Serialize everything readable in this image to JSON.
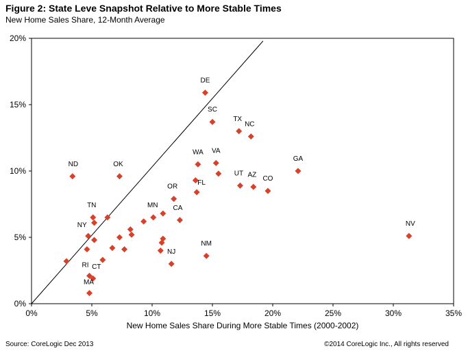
{
  "header": {
    "title": "Figure 2:  State Leve Snapshot Relative to More Stable Times",
    "subtitle": "New Home Sales Share, 12-Month Average"
  },
  "footer": {
    "source": "Source: CoreLogic Dec 2013",
    "copyright": "©2014 CoreLogic Inc., All rights reserved"
  },
  "chart_data": {
    "type": "scatter",
    "title": "Figure 2:  State Leve Snapshot Relative to More Stable Times",
    "subtitle": "New Home Sales Share, 12-Month Average",
    "xlabel": "New Home Sales Share During More Stable Times (2000-2002)",
    "ylabel": "",
    "xlim": [
      0,
      35
    ],
    "ylim": [
      0,
      20
    ],
    "x_ticks": [
      "0%",
      "5%",
      "10%",
      "15%",
      "20%",
      "25%",
      "30%",
      "35%"
    ],
    "y_ticks": [
      "0%",
      "5%",
      "10%",
      "15%",
      "20%"
    ],
    "marker_color": "#D9402A",
    "reference_line": {
      "from": [
        0,
        0
      ],
      "to": [
        19.2,
        19.8
      ]
    },
    "points": [
      {
        "label": "DE",
        "x": 14.4,
        "y": 15.9
      },
      {
        "label": "SC",
        "x": 15.0,
        "y": 13.7
      },
      {
        "label": "TX",
        "x": 17.2,
        "y": 13.0
      },
      {
        "label": "NC",
        "x": 18.2,
        "y": 12.6
      },
      {
        "label": "ND",
        "x": 3.4,
        "y": 9.6
      },
      {
        "label": "OK",
        "x": 7.3,
        "y": 9.6
      },
      {
        "label": "WA",
        "x": 13.8,
        "y": 10.5
      },
      {
        "label": "VA",
        "x": 15.3,
        "y": 10.6
      },
      {
        "label": "GA",
        "x": 22.1,
        "y": 10.0
      },
      {
        "label": "",
        "x": 15.5,
        "y": 9.8
      },
      {
        "label": "",
        "x": 13.6,
        "y": 9.3
      },
      {
        "label": "FL",
        "x": 13.7,
        "y": 8.4
      },
      {
        "label": "UT",
        "x": 17.3,
        "y": 8.9
      },
      {
        "label": "AZ",
        "x": 18.4,
        "y": 8.8
      },
      {
        "label": "CO",
        "x": 19.6,
        "y": 8.5
      },
      {
        "label": "OR",
        "x": 11.8,
        "y": 7.9
      },
      {
        "label": "TN",
        "x": 5.1,
        "y": 6.5
      },
      {
        "label": "",
        "x": 5.2,
        "y": 6.1
      },
      {
        "label": "",
        "x": 6.3,
        "y": 6.5
      },
      {
        "label": "MN",
        "x": 10.1,
        "y": 6.5
      },
      {
        "label": "",
        "x": 10.9,
        "y": 6.8
      },
      {
        "label": "CA",
        "x": 12.3,
        "y": 6.3
      },
      {
        "label": "",
        "x": 9.3,
        "y": 6.2
      },
      {
        "label": "",
        "x": 8.2,
        "y": 5.6
      },
      {
        "label": "",
        "x": 8.3,
        "y": 5.2
      },
      {
        "label": "NY",
        "x": 4.7,
        "y": 5.1
      },
      {
        "label": "",
        "x": 5.2,
        "y": 4.8
      },
      {
        "label": "",
        "x": 7.3,
        "y": 5.0
      },
      {
        "label": "",
        "x": 4.6,
        "y": 4.1
      },
      {
        "label": "",
        "x": 6.7,
        "y": 4.2
      },
      {
        "label": "",
        "x": 7.7,
        "y": 4.1
      },
      {
        "label": "",
        "x": 10.9,
        "y": 4.9
      },
      {
        "label": "",
        "x": 10.8,
        "y": 4.6
      },
      {
        "label": "",
        "x": 10.7,
        "y": 4.0
      },
      {
        "label": "NM",
        "x": 14.5,
        "y": 3.6
      },
      {
        "label": "NJ",
        "x": 11.6,
        "y": 3.0
      },
      {
        "label": "NV",
        "x": 31.3,
        "y": 5.1
      },
      {
        "label": "",
        "x": 2.9,
        "y": 3.2
      },
      {
        "label": "",
        "x": 5.9,
        "y": 3.3
      },
      {
        "label": "RI",
        "x": 4.8,
        "y": 2.1
      },
      {
        "label": "CT",
        "x": 5.1,
        "y": 1.9
      },
      {
        "label": "MA",
        "x": 4.8,
        "y": 0.8
      }
    ]
  }
}
